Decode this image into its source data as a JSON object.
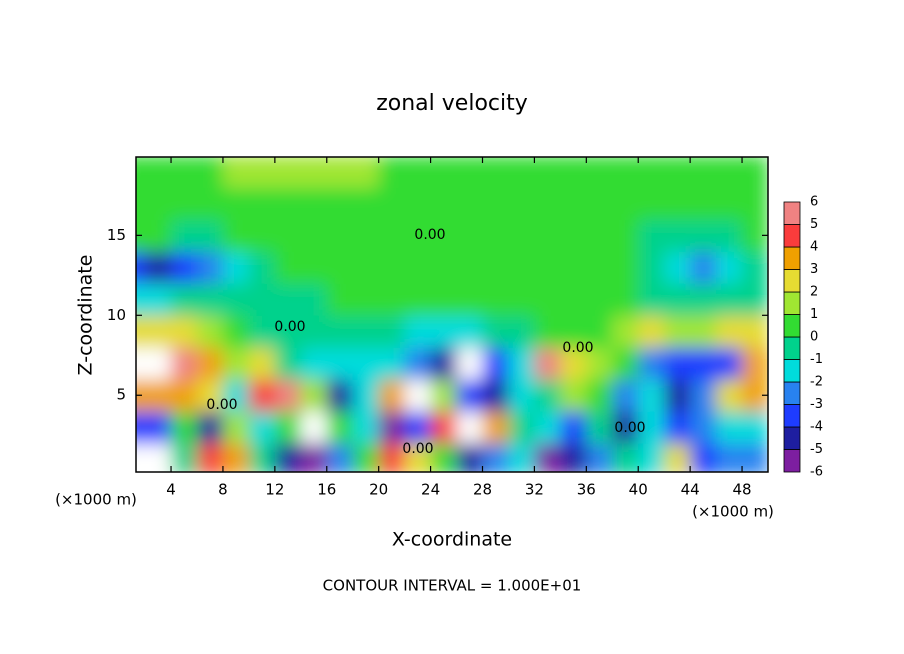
{
  "chart_data": {
    "type": "heatmap",
    "title": "zonal velocity",
    "xlabel": "X-coordinate",
    "ylabel": "Z-coordinate",
    "xunit_label": "(×1000 m)",
    "yunit_label": "(×1000 m)",
    "footer": "CONTOUR INTERVAL = 1.000E+01",
    "annotations": [
      "0.00",
      "0.00",
      "0.00",
      "0.00",
      "0.00",
      "0.00"
    ],
    "xlim": [
      1.3,
      50
    ],
    "ylim": [
      0.2,
      19.9
    ],
    "xticks": [
      4,
      8,
      12,
      16,
      20,
      24,
      28,
      32,
      36,
      40,
      44,
      48
    ],
    "yticks": [
      5,
      10,
      15
    ],
    "x": [
      1,
      3,
      5,
      7,
      9,
      11,
      13,
      15,
      17,
      19,
      21,
      23,
      25,
      27,
      29,
      31,
      33,
      35,
      37,
      39,
      41,
      43,
      45,
      47,
      49
    ],
    "y": [
      1,
      3,
      5,
      7,
      9,
      11,
      13,
      15,
      17,
      19
    ],
    "z": [
      [
        -7,
        -7,
        0,
        5,
        4,
        0,
        -4,
        -5,
        -2,
        1,
        5,
        3,
        1,
        -4,
        -2,
        -1,
        -5,
        -4,
        -2,
        0,
        -1,
        3,
        -3,
        -2,
        -2
      ],
      [
        -3,
        -3,
        1,
        -4,
        2,
        -1,
        0.5,
        7,
        1,
        -1,
        -5,
        -3,
        5,
        7,
        4,
        0,
        -1,
        -3,
        0,
        -4,
        -1,
        -3,
        -2,
        -1,
        -1
      ],
      [
        4,
        4,
        4,
        3,
        -1,
        5,
        6,
        2,
        -4,
        -1,
        4,
        7,
        2,
        -3,
        -4,
        -1,
        0,
        2,
        1,
        -2,
        -1,
        -4,
        -2,
        3,
        4
      ],
      [
        7,
        7,
        6,
        4,
        2,
        3,
        0,
        -1,
        -1,
        -1,
        -1,
        -2,
        -4,
        -7,
        -3,
        -1,
        6,
        3,
        2,
        1,
        -2,
        -3,
        -3,
        -3,
        4
      ],
      [
        3,
        3,
        2.5,
        2,
        1,
        0,
        -0.5,
        -0.5,
        -0.5,
        -0.5,
        -0.5,
        -1,
        -1,
        -1,
        -0.5,
        0,
        0.5,
        1,
        1,
        2,
        2.5,
        2,
        2,
        2.5,
        2.5
      ],
      [
        -1,
        -1,
        -0.5,
        -0.5,
        0,
        0,
        -0.5,
        0,
        0.5,
        0.3,
        0.3,
        0.3,
        0.2,
        0.2,
        0.2,
        0.2,
        0.2,
        0.2,
        0.2,
        0.1,
        0,
        -0.5,
        -0.5,
        -0.3,
        0
      ],
      [
        -3.5,
        -4,
        -3.5,
        -2,
        -1,
        0,
        0.3,
        0.3,
        0.3,
        0.3,
        0.3,
        0.3,
        0.3,
        0.3,
        0.3,
        0.3,
        0.4,
        0.5,
        0.4,
        0.2,
        0,
        -1,
        -2,
        -1,
        0
      ],
      [
        0.2,
        0.1,
        0,
        0,
        0.2,
        0.4,
        0.5,
        0.5,
        0.5,
        0.5,
        0.5,
        0.5,
        0.5,
        0.5,
        0.5,
        0.6,
        0.8,
        0.9,
        0.8,
        0.5,
        0,
        -0.5,
        -0.5,
        0,
        0.3
      ],
      [
        0.5,
        0.5,
        0.5,
        0.5,
        0.5,
        0.5,
        0.5,
        0.5,
        0.5,
        0.5,
        0.5,
        0.5,
        0.5,
        0.5,
        0.5,
        0.5,
        0.5,
        0.5,
        0.5,
        0.5,
        0.5,
        0.5,
        0.5,
        0.5,
        0.5
      ],
      [
        0.8,
        0.8,
        0.9,
        1,
        1.1,
        1.2,
        1.2,
        1.3,
        1.2,
        1.1,
        1,
        0.9,
        0.8,
        0.8,
        0.8,
        0.8,
        0.8,
        0.9,
        0.9,
        0.8,
        0.8,
        0.8,
        0.8,
        0.8,
        0.8
      ]
    ],
    "colorbar": {
      "ticks": [
        -6,
        -5,
        -4,
        -3,
        -2,
        -1,
        0,
        1,
        2,
        3,
        4,
        5,
        6
      ],
      "colors": [
        "#7d1ea0",
        "#1e1ea0",
        "#1e3cff",
        "#2882f0",
        "#00dcdc",
        "#00d28c",
        "#32dc32",
        "#a0e632",
        "#e6dc32",
        "#f0a000",
        "#fa3c3c",
        "#f08282"
      ],
      "outside_color": "#ffffff"
    }
  }
}
